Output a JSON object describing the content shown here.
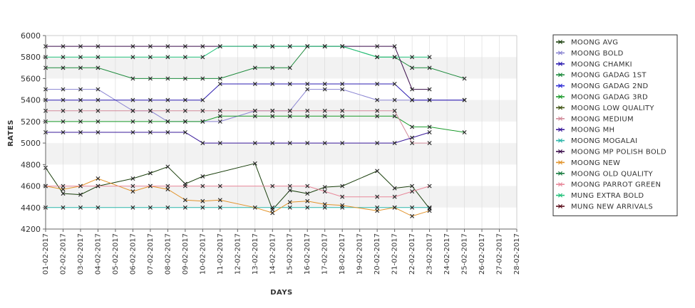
{
  "chart_data": {
    "type": "line",
    "title": "",
    "xlabel": "DAYS",
    "ylabel": "RATES",
    "ylim": [
      4200,
      6000
    ],
    "yticks": [
      4200,
      4400,
      4600,
      4800,
      5000,
      5200,
      5400,
      5600,
      5800,
      6000
    ],
    "grid": "alternating horizontal bands",
    "legend_position": "right",
    "categories": [
      "01-02-2017",
      "02-02-2017",
      "03-02-2017",
      "04-02-2017",
      "05-02-2017",
      "06-02-2017",
      "07-02-2017",
      "08-02-2017",
      "09-02-2017",
      "10-02-2017",
      "11-02-2017",
      "12-02-2017",
      "13-02-2017",
      "14-02-2017",
      "15-02-2017",
      "16-02-2017",
      "17-02-2017",
      "18-02-2017",
      "19-02-2017",
      "20-02-2017",
      "21-02-2017",
      "22-02-2017",
      "23-02-2017",
      "24-02-2017",
      "25-02-2017",
      "26-02-2017",
      "27-02-2017",
      "28-02-2017"
    ],
    "series": [
      {
        "name": "MOONG AVG",
        "color": "#1a3f0c",
        "values": [
          4770,
          4530,
          4520,
          4600,
          null,
          4670,
          4720,
          4780,
          4620,
          4690,
          null,
          null,
          4810,
          4380,
          4560,
          4530,
          4590,
          4600,
          null,
          4740,
          4580,
          4600,
          4390,
          null,
          null,
          null,
          null,
          null
        ]
      },
      {
        "name": "MOONG BOLD",
        "color": "#8a84d2",
        "values": [
          5500,
          5500,
          5500,
          5500,
          null,
          5300,
          5300,
          5200,
          5200,
          5200,
          5200,
          null,
          5300,
          5300,
          5300,
          5500,
          5500,
          5500,
          null,
          5400,
          5400,
          5400,
          5400,
          null,
          5400,
          null,
          null,
          null
        ]
      },
      {
        "name": "MOONG CHAMKI",
        "color": "#2c1cb0",
        "values": [
          5400,
          5400,
          5400,
          5400,
          null,
          5400,
          5400,
          5400,
          5400,
          5400,
          5550,
          null,
          5550,
          5550,
          5550,
          5550,
          5550,
          5550,
          null,
          5550,
          5550,
          5400,
          5400,
          null,
          5400,
          null,
          null,
          null
        ]
      },
      {
        "name": "MOONG GADAG 1ST",
        "color": "#1d8a3c",
        "values": [
          5700,
          5700,
          5700,
          5700,
          null,
          5600,
          5600,
          5600,
          5600,
          5600,
          5600,
          null,
          5700,
          5700,
          5700,
          5900,
          5900,
          5900,
          null,
          5800,
          5800,
          5700,
          5700,
          null,
          5600,
          null,
          null,
          null
        ]
      },
      {
        "name": "MOONG GADAG 2ND",
        "color": "#2d2bd6",
        "values": [
          null,
          null,
          null,
          null,
          null,
          null,
          null,
          null,
          null,
          null,
          null,
          null,
          null,
          null,
          null,
          null,
          null,
          null,
          null,
          null,
          null,
          null,
          null,
          null,
          null,
          null,
          null,
          null
        ]
      },
      {
        "name": "MOONG GADAG 3RD",
        "color": "#1a9a2a",
        "values": [
          5200,
          5200,
          5200,
          5200,
          null,
          5200,
          5200,
          5200,
          5200,
          5200,
          5250,
          null,
          5250,
          5250,
          5250,
          5250,
          5250,
          5250,
          null,
          5250,
          5250,
          5150,
          5150,
          null,
          5100,
          null,
          null,
          null
        ]
      },
      {
        "name": "MOONG LOW QUALITY",
        "color": "#3e5210",
        "values": [
          null,
          null,
          null,
          null,
          null,
          null,
          null,
          null,
          null,
          null,
          null,
          null,
          null,
          null,
          null,
          null,
          null,
          null,
          null,
          null,
          null,
          null,
          null,
          null,
          null,
          null,
          null,
          null
        ]
      },
      {
        "name": "MOONG MEDIUM",
        "color": "#d28a9a",
        "values": [
          5300,
          5300,
          5300,
          5300,
          null,
          5300,
          5300,
          5300,
          5300,
          5300,
          5300,
          null,
          5300,
          5300,
          5300,
          5300,
          5300,
          5300,
          null,
          5300,
          5300,
          5000,
          5000,
          null,
          null,
          null,
          null,
          null
        ]
      },
      {
        "name": "MOONG MH",
        "color": "#3a1a9a",
        "values": [
          5100,
          5100,
          5100,
          5100,
          null,
          5100,
          5100,
          5100,
          5100,
          5000,
          5000,
          null,
          5000,
          5000,
          5000,
          5000,
          5000,
          5000,
          null,
          5000,
          5000,
          5050,
          5100,
          null,
          null,
          null,
          null,
          null
        ]
      },
      {
        "name": "MOONG MOGALAI",
        "color": "#2bb6aa",
        "values": [
          4400,
          4400,
          4400,
          4400,
          null,
          4400,
          4400,
          4400,
          4400,
          4400,
          4400,
          null,
          null,
          4400,
          4400,
          4400,
          4400,
          4400,
          null,
          4400,
          4400,
          4400,
          4400,
          null,
          null,
          null,
          null,
          null
        ]
      },
      {
        "name": "MOONG MP POLISH BOLD",
        "color": "#3a0c4a",
        "values": [
          5900,
          5900,
          5900,
          5900,
          null,
          5900,
          5900,
          5900,
          5900,
          5900,
          5900,
          null,
          5900,
          5900,
          5900,
          5900,
          5900,
          5900,
          null,
          5900,
          5900,
          5500,
          5500,
          null,
          null,
          null,
          null,
          null
        ]
      },
      {
        "name": "MOONG NEW",
        "color": "#e2932a",
        "values": [
          4600,
          4570,
          4600,
          4670,
          null,
          4550,
          4600,
          4570,
          4470,
          4460,
          4470,
          null,
          4400,
          4350,
          4450,
          4460,
          4430,
          4420,
          null,
          4370,
          4400,
          4320,
          4370,
          null,
          null,
          null,
          null,
          null
        ]
      },
      {
        "name": "MOONG OLD QUALITY",
        "color": "#167a3e",
        "values": [
          null,
          null,
          null,
          null,
          null,
          null,
          null,
          null,
          null,
          null,
          null,
          null,
          null,
          null,
          null,
          null,
          null,
          null,
          null,
          null,
          null,
          null,
          null,
          null,
          null,
          null,
          null,
          null
        ]
      },
      {
        "name": "MOONG PARROT GREEN",
        "color": "#e8889a",
        "values": [
          4600,
          4600,
          4600,
          4600,
          null,
          4600,
          4600,
          4600,
          4600,
          4600,
          4600,
          null,
          null,
          4600,
          4600,
          4600,
          4550,
          4500,
          null,
          4500,
          4500,
          4550,
          4600,
          null,
          null,
          null,
          null,
          null
        ]
      },
      {
        "name": "MUNG EXTRA BOLD",
        "color": "#22c27a",
        "values": [
          5800,
          5800,
          5800,
          5800,
          null,
          5800,
          5800,
          5800,
          5800,
          5800,
          5900,
          null,
          5900,
          5900,
          5900,
          5900,
          5900,
          5900,
          null,
          5800,
          5800,
          5800,
          5800,
          null,
          null,
          null,
          null,
          null
        ]
      },
      {
        "name": "MUNG NEW ARRIVALS",
        "color": "#5a0c1a",
        "values": [
          null,
          null,
          null,
          null,
          null,
          null,
          null,
          null,
          null,
          null,
          null,
          null,
          null,
          null,
          null,
          null,
          null,
          null,
          null,
          null,
          null,
          null,
          null,
          null,
          null,
          null,
          null,
          null
        ]
      }
    ]
  }
}
